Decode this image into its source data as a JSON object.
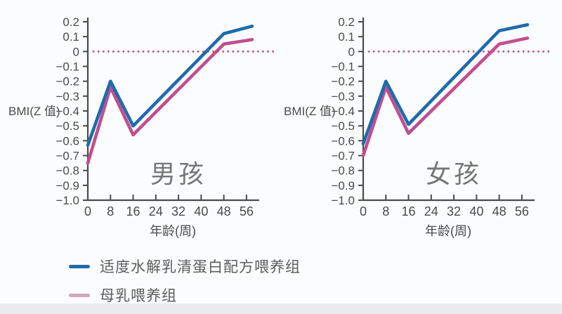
{
  "page": {
    "background": "#fbfcfd",
    "footer_band_color": "#e9edf0"
  },
  "colors": {
    "formula_blue": "#1f6bad",
    "breast_pink": "#c14e8e",
    "legend_pink": "#d2a7bb",
    "zero_dotted": "#bb5a78",
    "axis": "#4b4b4b",
    "tick_text": "#4a4a4a",
    "title_gray": "#767676"
  },
  "chart_data": [
    {
      "type": "line",
      "title": "男孩",
      "ylabel": "BMI(Z 值)",
      "xlabel": "年龄(周)",
      "xlim": [
        0,
        60
      ],
      "ylim": [
        -1.0,
        0.22
      ],
      "grid": false,
      "legend_position": "below-figure",
      "x_ticks": [
        0,
        8,
        16,
        24,
        32,
        40,
        48,
        56
      ],
      "y_ticks": [
        {
          "value": 0.2,
          "label": "0.2"
        },
        {
          "value": 0.1,
          "label": "0.1"
        },
        {
          "value": 0,
          "label": "0"
        },
        {
          "value": -0.1,
          "label": "−0.1"
        },
        {
          "value": -0.2,
          "label": "−0.2"
        },
        {
          "value": -0.3,
          "label": "−0.3"
        },
        {
          "value": -0.4,
          "label": "−0.4"
        },
        {
          "value": -0.5,
          "label": "−0.5"
        },
        {
          "value": -0.6,
          "label": "−0.6"
        },
        {
          "value": -0.7,
          "label": "−0.7"
        },
        {
          "value": -0.8,
          "label": "−0.8"
        },
        {
          "value": -0.9,
          "label": "−0.9"
        },
        {
          "value": -1.0,
          "label": "−1.0"
        }
      ],
      "zero_reference_line": 0,
      "series": [
        {
          "name": "适度水解乳清蛋白配方喂养组",
          "color_key": "formula_blue",
          "x": [
            0,
            8,
            16,
            48,
            58
          ],
          "y": [
            -0.63,
            -0.2,
            -0.5,
            0.12,
            0.17
          ]
        },
        {
          "name": "母乳喂养组",
          "color_key": "breast_pink",
          "x": [
            0,
            8,
            16,
            48,
            58
          ],
          "y": [
            -0.75,
            -0.24,
            -0.56,
            0.05,
            0.08
          ]
        }
      ]
    },
    {
      "type": "line",
      "title": "女孩",
      "ylabel": "BMI(Z 值)",
      "xlabel": "年龄(周)",
      "xlim": [
        0,
        60
      ],
      "ylim": [
        -1.0,
        0.22
      ],
      "grid": false,
      "legend_position": "below-figure",
      "x_ticks": [
        0,
        8,
        16,
        24,
        32,
        40,
        48,
        56
      ],
      "y_ticks": [
        {
          "value": 0.2,
          "label": "0.2"
        },
        {
          "value": 0.1,
          "label": "0.1"
        },
        {
          "value": 0,
          "label": "0"
        },
        {
          "value": -0.1,
          "label": "−0.1"
        },
        {
          "value": -0.2,
          "label": "−0.2"
        },
        {
          "value": -0.3,
          "label": "−0.3"
        },
        {
          "value": -0.4,
          "label": "−0.4"
        },
        {
          "value": -0.5,
          "label": "−0.5"
        },
        {
          "value": -0.6,
          "label": "−0.6"
        },
        {
          "value": -0.7,
          "label": "−0.7"
        },
        {
          "value": -0.8,
          "label": "−0.8"
        },
        {
          "value": -0.9,
          "label": "−0.9"
        },
        {
          "value": -1.0,
          "label": "−1.0"
        }
      ],
      "zero_reference_line": 0,
      "series": [
        {
          "name": "适度水解乳清蛋白配方喂养组",
          "color_key": "formula_blue",
          "x": [
            0,
            8,
            16,
            48,
            58
          ],
          "y": [
            -0.62,
            -0.2,
            -0.49,
            0.14,
            0.18
          ]
        },
        {
          "name": "母乳喂养组",
          "color_key": "breast_pink",
          "x": [
            0,
            8,
            16,
            48,
            58
          ],
          "y": [
            -0.7,
            -0.24,
            -0.55,
            0.05,
            0.09
          ]
        }
      ]
    }
  ],
  "legend": {
    "items": [
      {
        "label": "适度水解乳清蛋白配方喂养组",
        "color": "#1f6bad"
      },
      {
        "label": "母乳喂养组",
        "color": "#d2a7bb"
      }
    ]
  }
}
